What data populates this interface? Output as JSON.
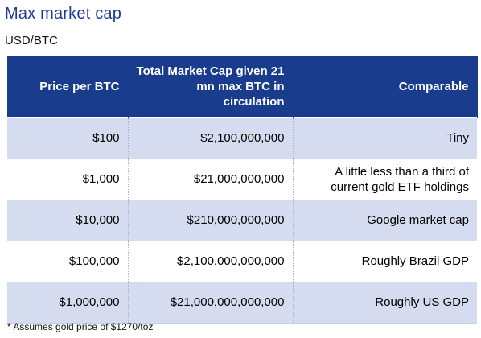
{
  "title": "Max market cap",
  "subtitle": "USD/BTC",
  "table": {
    "headers": {
      "price": "Price per BTC",
      "cap": "Total Market Cap given 21 mn max BTC in circulation",
      "comparable": "Comparable"
    },
    "rows": [
      {
        "price": "$100",
        "cap": "$2,100,000,000",
        "comparable": "Tiny"
      },
      {
        "price": "$1,000",
        "cap": "$21,000,000,000",
        "comparable": "A little less than a third of current gold ETF holdings"
      },
      {
        "price": "$10,000",
        "cap": "$210,000,000,000",
        "comparable": "Google  market cap"
      },
      {
        "price": "$100,000",
        "cap": "$2,100,000,000,000",
        "comparable": "Roughly Brazil GDP"
      },
      {
        "price": "$1,000,000",
        "cap": "$21,000,000,000,000",
        "comparable": "Roughly US GDP"
      }
    ]
  },
  "footnote": "* Assumes gold price of $1270/toz",
  "colors": {
    "title": "#1f3a93",
    "header_bg": "#1a3c8c",
    "row_shade": "#d6dcef"
  }
}
